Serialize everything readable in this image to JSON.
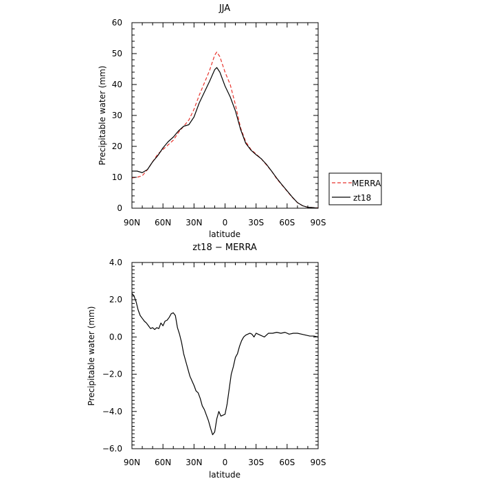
{
  "chart_data": [
    {
      "type": "line",
      "title": "JJA",
      "xlabel": "latitude",
      "ylabel": "Precipitable water (mm)",
      "xlim": [
        90,
        -90
      ],
      "ylim": [
        0,
        60
      ],
      "xticks": [
        90,
        60,
        30,
        0,
        -30,
        -60,
        -90
      ],
      "xtick_labels": [
        "90N",
        "60N",
        "30N",
        "0",
        "30S",
        "60S",
        "90S"
      ],
      "yticks": [
        0,
        10,
        20,
        30,
        40,
        50,
        60
      ],
      "ytick_labels": [
        "0",
        "10",
        "20",
        "30",
        "40",
        "50",
        "60"
      ],
      "grid": false,
      "legend_position": "right",
      "series": [
        {
          "name": "MERRA",
          "color": "#e8312a",
          "dash": "dashed",
          "x": [
            90,
            85,
            80,
            75,
            70,
            65,
            60,
            55,
            50,
            45,
            40,
            35,
            30,
            25,
            20,
            15,
            10,
            8,
            5,
            0,
            -5,
            -10,
            -15,
            -20,
            -25,
            -30,
            -35,
            -40,
            -45,
            -50,
            -55,
            -60,
            -65,
            -70,
            -75,
            -80,
            -85,
            -90
          ],
          "y": [
            9.8,
            10.0,
            10.5,
            12.5,
            15.0,
            17.5,
            19.0,
            20.5,
            22.0,
            24.5,
            26.5,
            28.5,
            32.0,
            36.5,
            40.5,
            44.5,
            49.5,
            50.5,
            49.0,
            44.0,
            40.0,
            33.5,
            26.0,
            21.5,
            19.0,
            17.5,
            16.0,
            14.0,
            12.0,
            9.5,
            7.5,
            5.5,
            3.5,
            1.8,
            0.8,
            0.3,
            0.2,
            0.1
          ]
        },
        {
          "name": "zt18",
          "color": "#000000",
          "dash": "solid",
          "x": [
            90,
            85,
            80,
            75,
            70,
            65,
            60,
            55,
            50,
            45,
            40,
            35,
            30,
            25,
            20,
            15,
            10,
            8,
            5,
            0,
            -5,
            -10,
            -15,
            -20,
            -25,
            -30,
            -35,
            -40,
            -45,
            -50,
            -55,
            -60,
            -65,
            -70,
            -75,
            -80,
            -85,
            -90
          ],
          "y": [
            12.0,
            12.0,
            11.5,
            12.5,
            15.0,
            17.0,
            19.5,
            21.5,
            23.0,
            25.0,
            26.5,
            27.0,
            29.5,
            34.0,
            37.5,
            41.0,
            44.8,
            45.5,
            44.0,
            39.5,
            36.0,
            31.5,
            25.5,
            21.0,
            18.8,
            17.3,
            16.0,
            14.2,
            12.0,
            9.7,
            7.6,
            5.6,
            3.6,
            1.8,
            0.8,
            0.3,
            0.2,
            0.0
          ]
        }
      ]
    },
    {
      "type": "line",
      "title": "zt18 − MERRA",
      "xlabel": "latitude",
      "ylabel": "Precipitable water (mm)",
      "xlim": [
        90,
        -90
      ],
      "ylim": [
        -6,
        4
      ],
      "xticks": [
        90,
        60,
        30,
        0,
        -30,
        -60,
        -90
      ],
      "xtick_labels": [
        "90N",
        "60N",
        "30N",
        "0",
        "30S",
        "60S",
        "90S"
      ],
      "yticks": [
        4,
        2,
        0,
        -2,
        -4,
        -6
      ],
      "ytick_labels": [
        "4.0",
        "2.0",
        "0.0",
        "−2.0",
        "−4.0",
        "−6.0"
      ],
      "grid": false,
      "series": [
        {
          "color": "#000000",
          "dash": "solid",
          "x": [
            90,
            88,
            86,
            84,
            82,
            80,
            78,
            76,
            74,
            72,
            70,
            68,
            66,
            64,
            62,
            60,
            58,
            56,
            54,
            52,
            50,
            48,
            46,
            44,
            42,
            40,
            38,
            36,
            34,
            32,
            30,
            28,
            26,
            24,
            22,
            20,
            18,
            16,
            14,
            12,
            10,
            8,
            6,
            4,
            2,
            0,
            -2,
            -4,
            -6,
            -8,
            -10,
            -12,
            -14,
            -16,
            -18,
            -20,
            -22,
            -24,
            -26,
            -28,
            -30,
            -34,
            -38,
            -42,
            -46,
            -50,
            -54,
            -58,
            -62,
            -66,
            -70,
            -74,
            -78,
            -82,
            -86,
            -90
          ],
          "y": [
            2.35,
            2.2,
            1.9,
            1.45,
            1.15,
            1.0,
            0.85,
            0.75,
            0.6,
            0.45,
            0.5,
            0.4,
            0.5,
            0.45,
            0.75,
            0.6,
            0.85,
            0.9,
            1.05,
            1.25,
            1.3,
            1.15,
            0.5,
            0.15,
            -0.3,
            -0.9,
            -1.3,
            -1.7,
            -2.1,
            -2.35,
            -2.6,
            -2.9,
            -3.0,
            -3.3,
            -3.7,
            -3.9,
            -4.2,
            -4.5,
            -4.9,
            -5.25,
            -5.1,
            -4.4,
            -4.0,
            -4.25,
            -4.2,
            -4.15,
            -3.6,
            -2.8,
            -2.0,
            -1.6,
            -1.1,
            -0.9,
            -0.5,
            -0.2,
            0.0,
            0.1,
            0.15,
            0.2,
            0.15,
            0.0,
            0.2,
            0.1,
            0.0,
            0.2,
            0.2,
            0.25,
            0.2,
            0.25,
            0.15,
            0.2,
            0.2,
            0.15,
            0.1,
            0.05,
            0.05,
            0.0
          ]
        }
      ]
    }
  ]
}
